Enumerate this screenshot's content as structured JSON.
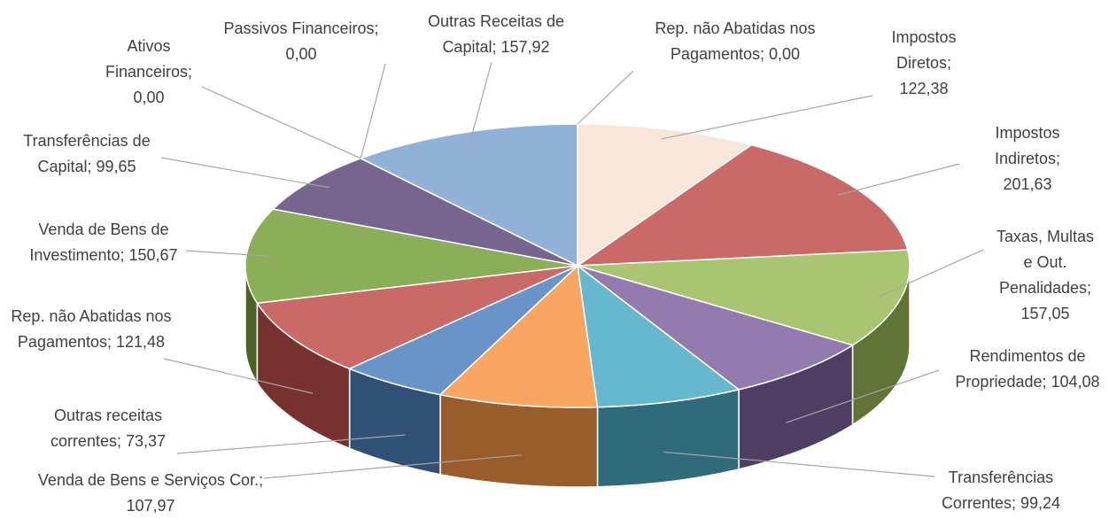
{
  "chart_data": {
    "type": "pie",
    "3d": true,
    "categories": [
      "Rep. não Abatidas nos Pagamentos;",
      "Impostos Diretos;",
      "Impostos Indiretos;",
      "Taxas, Multas e Out. Penalidades;",
      "Rendimentos de Propriedade;",
      "Transferências Correntes;",
      "Venda de Bens e Serviços Cor.;",
      "Outras receitas correntes;",
      "Rep. não Abatidas nos Pagamentos;",
      "Venda de Bens de Investimento;",
      "Transferências de Capital;",
      "Ativos Financeiros;",
      "Passivos Financeiros;",
      "Outras Receitas de Capital;"
    ],
    "values": [
      0,
      122.38,
      201.63,
      157.05,
      104.08,
      99.24,
      107.97,
      73.37,
      121.48,
      150.67,
      99.65,
      0,
      0,
      157.92
    ],
    "value_labels": [
      "0,00",
      "122,38",
      "201,63",
      "157,05",
      "104,08",
      "99,24",
      "107,97",
      "73,37",
      "121,48",
      "150,67",
      "99,65",
      "0,00",
      "0,00",
      "157,92"
    ],
    "colors": [
      "#f5c9a8",
      "#f5e1d2",
      "#c0504d",
      "#9bbb59",
      "#8064a2",
      "#4bacc6",
      "#f79646",
      "#4f81bd",
      "#c0504d",
      "#77a03a",
      "#604a7b",
      "#4f81bd",
      "#c0504d",
      "#7fa3d0"
    ]
  }
}
